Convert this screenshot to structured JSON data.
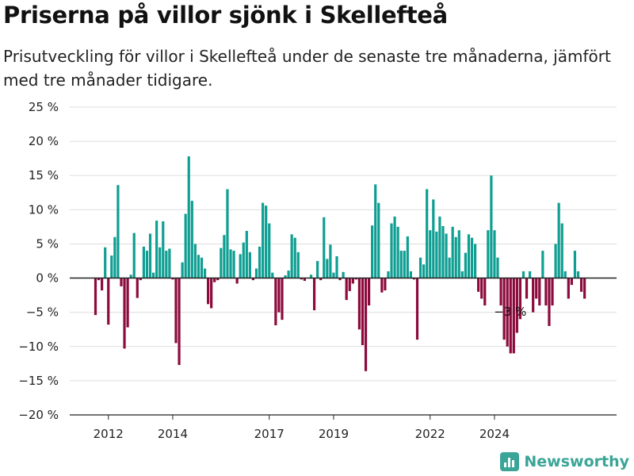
{
  "title": "Priserna på villor sjönk i Skellefteå",
  "subtitle": "Prisutveckling för villor i Skellefteå under de senaste tre månaderna, jämfört med tre månader tidigare.",
  "logo": {
    "text": "Newsworthy",
    "icon": "bar-chart-logo-icon"
  },
  "colors": {
    "positive": "#0f9e92",
    "negative": "#8c0a3c",
    "grid": "#dddddd",
    "axis": "#222222"
  },
  "chart_data": {
    "type": "bar",
    "ylim": [
      -20,
      25
    ],
    "yticks": [
      -20,
      -15,
      -10,
      -5,
      0,
      5,
      10,
      15,
      20,
      25
    ],
    "ytick_labels": [
      "−20 %",
      "−15 %",
      "−10 %",
      "−5 %",
      "0 %",
      "5 %",
      "10 %",
      "15 %",
      "20 %",
      "25 %"
    ],
    "xtick_labels": [
      "2012",
      "2014",
      "2017",
      "2019",
      "2022",
      "2024"
    ],
    "xtick_positions": [
      4,
      24,
      54,
      74,
      104,
      124
    ],
    "annotation": {
      "text": "−3 %",
      "index": 129
    },
    "values": [
      -5.4,
      -0.3,
      -1.8,
      4.5,
      -6.8,
      3.3,
      6.0,
      13.6,
      -1.2,
      -10.3,
      -7.2,
      0.5,
      6.6,
      -2.9,
      -0.3,
      4.6,
      4.0,
      6.5,
      0.8,
      8.4,
      4.5,
      8.3,
      4.0,
      4.3,
      -0.2,
      -9.5,
      -12.7,
      2.3,
      9.4,
      17.8,
      11.3,
      5.0,
      3.4,
      3.0,
      1.4,
      -3.8,
      -4.4,
      -0.6,
      -0.3,
      4.4,
      6.3,
      13.0,
      4.2,
      4.0,
      -0.8,
      3.5,
      5.2,
      6.9,
      3.8,
      -0.3,
      1.4,
      4.6,
      11.0,
      10.6,
      8.0,
      0.8,
      -6.9,
      -5.0,
      -6.1,
      0.4,
      1.1,
      6.4,
      5.9,
      3.8,
      -0.2,
      -0.4,
      0.0,
      0.5,
      -4.7,
      2.5,
      -0.3,
      8.9,
      2.8,
      4.9,
      0.8,
      3.2,
      -0.3,
      0.9,
      -3.2,
      -1.9,
      -0.8,
      -0.2,
      -7.5,
      -9.8,
      -13.6,
      -4.0,
      7.7,
      13.7,
      11.0,
      -2.1,
      -1.8,
      1.0,
      8.0,
      9.0,
      7.5,
      4.0,
      4.0,
      6.1,
      1.0,
      -0.2,
      -9.0,
      3.0,
      2.0,
      13.0,
      7.0,
      11.5,
      6.8,
      9.0,
      7.6,
      6.5,
      3.0,
      7.5,
      6.0,
      7.0,
      1.0,
      3.7,
      6.4,
      5.9,
      5.0,
      -2.0,
      -3.0,
      -4.0,
      7.0,
      15.0,
      7.0,
      3.0,
      -4.0,
      -9.0,
      -10.0,
      -11.0,
      -11.0,
      -8.0,
      -6.0,
      1.0,
      -3.0,
      1.0,
      -5.0,
      -3.0,
      -4.0,
      4.0,
      -4.0,
      -7.0,
      -4.0,
      5.0,
      11.0,
      8.0,
      1.0,
      -3.0,
      -1.0,
      4.0,
      1.0,
      -2.0,
      -3.0
    ]
  }
}
